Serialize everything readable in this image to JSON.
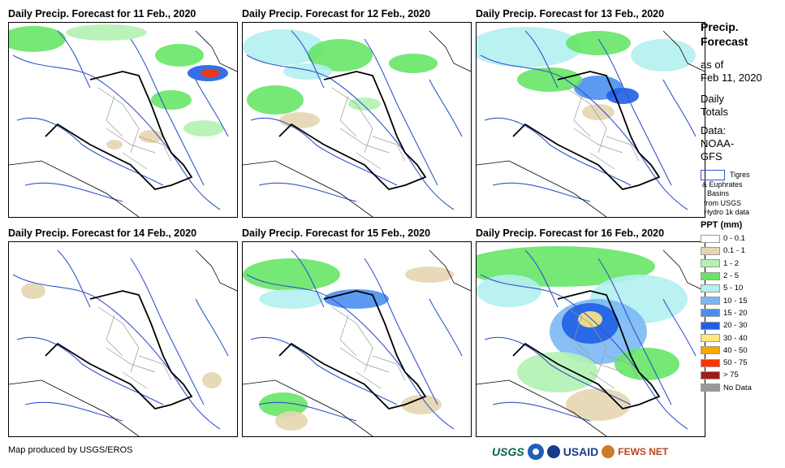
{
  "panels": [
    {
      "title": "Daily Precip. Forecast for 11 Feb., 2020"
    },
    {
      "title": "Daily Precip. Forecast for 12 Feb., 2020"
    },
    {
      "title": "Daily Precip. Forecast for 13 Feb., 2020"
    },
    {
      "title": "Daily Precip. Forecast for 14 Feb., 2020"
    },
    {
      "title": "Daily Precip. Forecast for 15 Feb., 2020"
    },
    {
      "title": "Daily Precip. Forecast for 16 Feb., 2020"
    }
  ],
  "legend": {
    "title_line1": "Precip.",
    "title_line2": "Forecast",
    "asof_line1": "as of",
    "asof_line2": "Feb 11, 2020",
    "daily_line1": "Daily",
    "daily_line2": "Totals",
    "data_line1": "Data:",
    "data_line2": "NOAA-",
    "data_line3": "GFS",
    "basin_line1": "Tigres",
    "basin_line2": "& Euphrates",
    "basin_line3": "Basins",
    "basin_line4": "from USGS",
    "basin_line5": "Hydro 1k data",
    "ppt_title": "PPT (mm)",
    "classes": [
      {
        "label": "0 - 0.1",
        "color": "#ffffff"
      },
      {
        "label": "0.1 - 1",
        "color": "#e6d6b0"
      },
      {
        "label": "1 - 2",
        "color": "#b3f2b3"
      },
      {
        "label": "2 - 5",
        "color": "#66e666"
      },
      {
        "label": "5 - 10",
        "color": "#b3f0f0"
      },
      {
        "label": "10 - 15",
        "color": "#7ab8f5"
      },
      {
        "label": "15 - 20",
        "color": "#4a8ef0"
      },
      {
        "label": "20 - 30",
        "color": "#1f5fe6"
      },
      {
        "label": "30 - 40",
        "color": "#ffe680"
      },
      {
        "label": "40 - 50",
        "color": "#ffa500"
      },
      {
        "label": "50 - 75",
        "color": "#ff3300"
      },
      {
        "label": "> 75",
        "color": "#a31a1a"
      },
      {
        "label": "No Data",
        "color": "#999999"
      }
    ]
  },
  "footer": {
    "credit": "Map produced by USGS/EROS"
  },
  "logos": {
    "usgs": "USGS",
    "usaid": "USAID",
    "fews": "FEWS NET"
  },
  "colors": {
    "boundary": "#000000",
    "admin": "#999999",
    "river": "#3355cc"
  }
}
